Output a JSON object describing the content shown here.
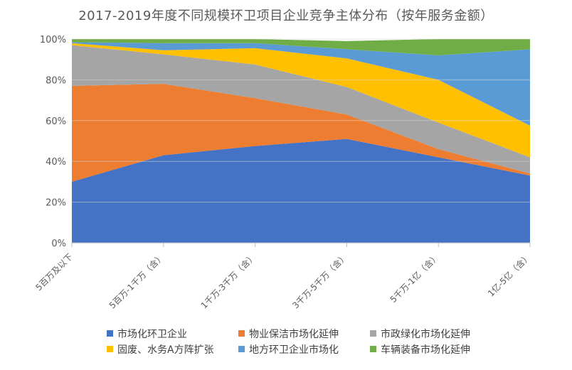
{
  "chart_data": {
    "type": "area",
    "stacked": true,
    "percent": true,
    "title": "2017-2019年度不同规模环卫项目企业竞争主体分布（按年服务金额）",
    "categories": [
      "5百万及以下",
      "5百万-1千万（含）",
      "1千万-3千万（含）",
      "3千万-5千万（含）",
      "5千万-1亿（含）",
      "1亿-5亿（含）"
    ],
    "y_ticks": [
      "0%",
      "20%",
      "40%",
      "60%",
      "80%",
      "100%"
    ],
    "ylim": [
      0,
      100
    ],
    "grid": true,
    "legend_position": "bottom",
    "series": [
      {
        "name": "市场化环卫企业",
        "color": "#4472C4",
        "values": [
          30,
          43,
          47.5,
          51,
          42,
          33
        ]
      },
      {
        "name": "物业保洁市场化延伸",
        "color": "#ED7D31",
        "values": [
          47,
          35,
          23.5,
          12,
          4,
          1
        ]
      },
      {
        "name": "市政绿化市场化延伸",
        "color": "#A5A5A5",
        "values": [
          20,
          14.5,
          16.5,
          13.5,
          13,
          8
        ]
      },
      {
        "name": "固废、水务A方阵扩张",
        "color": "#FFC000",
        "values": [
          1,
          2,
          8,
          14,
          21,
          15.5
        ]
      },
      {
        "name": "地方环卫企业市场化",
        "color": "#5B9BD5",
        "values": [
          0.5,
          3.5,
          2.5,
          4.5,
          12,
          37.5
        ]
      },
      {
        "name": "车辆装备市场化延伸",
        "color": "#70AD47",
        "values": [
          1.5,
          2,
          2,
          4,
          8,
          5
        ]
      }
    ]
  }
}
